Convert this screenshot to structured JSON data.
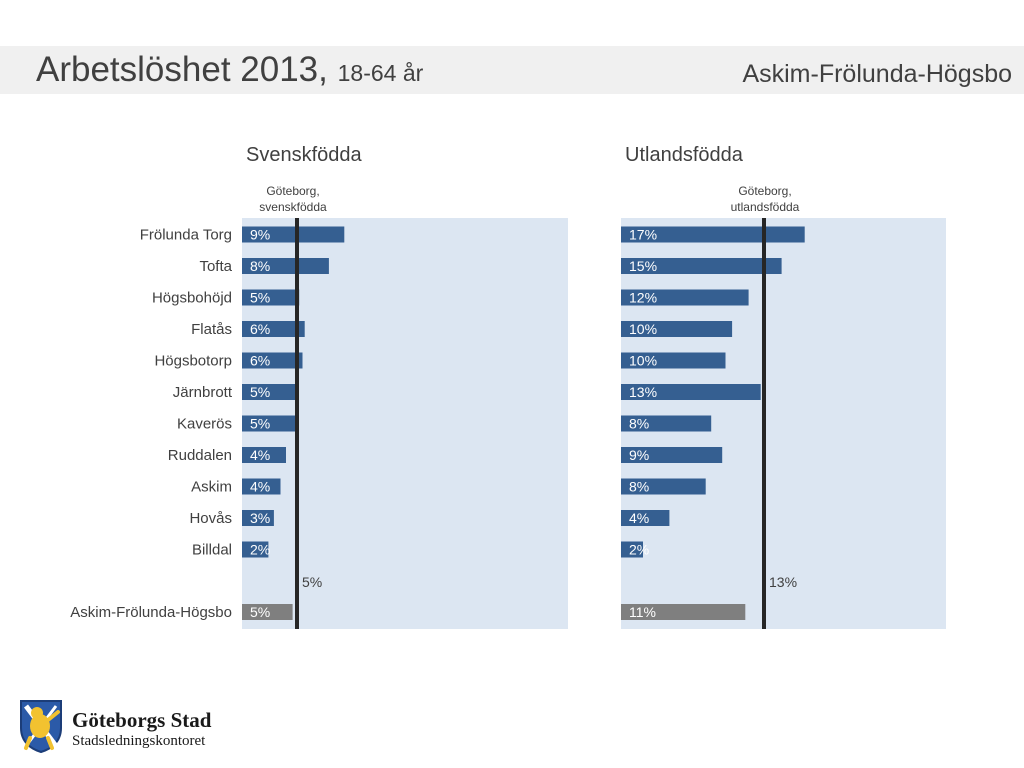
{
  "header": {
    "title": "Arbetslöshet 2013,",
    "subtitle": "18-64 år",
    "area": "Askim-Frölunda-Högsbo"
  },
  "colors": {
    "panel_bg": "#dce6f2",
    "bar": "#355f91",
    "total_bar": "#7f7f7f",
    "reference_line": "#262626"
  },
  "chart_data": [
    {
      "type": "bar",
      "orientation": "horizontal",
      "title": "Svenskfödda",
      "reference": {
        "label_line1": "Göteborg,",
        "label_line2": "svenskfödda",
        "value": 5,
        "value_label": "5%"
      },
      "categories": [
        "Frölunda Torg",
        "Tofta",
        "Högsbohöjd",
        "Flatås",
        "Högsbotorp",
        "Järnbrott",
        "Kaverös",
        "Ruddalen",
        "Askim",
        "Hovås",
        "Billdal"
      ],
      "values": [
        9.3,
        7.9,
        5.2,
        5.7,
        5.5,
        4.9,
        4.9,
        4.0,
        3.5,
        2.9,
        2.4
      ],
      "labels": [
        "9%",
        "8%",
        "5%",
        "6%",
        "6%",
        "5%",
        "5%",
        "4%",
        "4%",
        "3%",
        "2%"
      ],
      "total": {
        "category": "Askim-Frölunda-Högsbo",
        "value": 4.6,
        "label": "5%"
      },
      "xlim": [
        0,
        30
      ],
      "grid": false
    },
    {
      "type": "bar",
      "orientation": "horizontal",
      "title": "Utlandsfödda",
      "reference": {
        "label_line1": "Göteborg,",
        "label_line2": "utlandsfödda",
        "value": 13,
        "value_label": "13%"
      },
      "categories": [
        "Frölunda Torg",
        "Tofta",
        "Högsbohöjd",
        "Flatås",
        "Högsbotorp",
        "Järnbrott",
        "Kaverös",
        "Ruddalen",
        "Askim",
        "Hovås",
        "Billdal"
      ],
      "values": [
        16.7,
        14.6,
        11.6,
        10.1,
        9.5,
        12.7,
        8.2,
        9.2,
        7.7,
        4.4,
        2.0
      ],
      "labels": [
        "17%",
        "15%",
        "12%",
        "10%",
        "10%",
        "13%",
        "8%",
        "9%",
        "8%",
        "4%",
        "2%"
      ],
      "total": {
        "category": "Askim-Frölunda-Högsbo",
        "value": 11.3,
        "label": "11%"
      },
      "xlim": [
        0,
        30
      ],
      "grid": false
    }
  ],
  "logo": {
    "name": "Göteborgs Stad",
    "department": "Stadsledningskontoret",
    "icon": "goteborg-lion-shield-icon"
  }
}
